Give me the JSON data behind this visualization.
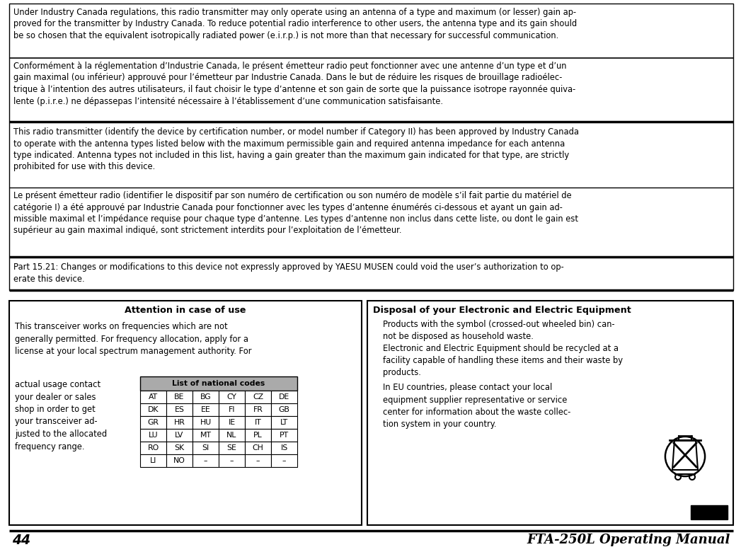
{
  "bg_color": "#ffffff",
  "page_num": "44",
  "block1_text": "Under Industry Canada regulations, this radio transmitter may only operate using an antenna of a type and maximum (or lesser) gain ap-\nproved for the transmitter by Industry Canada. To reduce potential radio interference to other users, the antenna type and its gain should\nbe so chosen that the equivalent isotropically radiated power (e.i.r.p.) is not more than that necessary for successful communication.",
  "block2_text": "Conformément à la réglementation d’Industrie Canada, le présent émetteur radio peut fonctionner avec une antenne d’un type et d’un\ngain maximal (ou inférieur) approuvé pour l’émetteur par Industrie Canada. Dans le but de réduire les risques de brouillage radioélec-\ntrique à l’intention des autres utilisateurs, il faut choisir le type d’antenne et son gain de sorte que la puissance isotrope rayonnée quiva-\nlente (p.i.r.e.) ne dépassepas l’intensité nécessaire à l’établissement d’une communication satisfaisante.",
  "block3_text": "This radio transmitter (identify the device by certification number, or model number if Category II) has been approved by Industry Canada\nto operate with the antenna types listed below with the maximum permissible gain and required antenna impedance for each antenna\ntype indicated. Antenna types not included in this list, having a gain greater than the maximum gain indicated for that type, are strictly\nprohibited for use with this device.",
  "block4_text": "Le présent émetteur radio (identifier le dispositif par son numéro de certification ou son numéro de modèle s’il fait partie du matériel de\ncatégorie I) a été approuvé par Industrie Canada pour fonctionner avec les types d’antenne énumérés ci-dessous et ayant un gain ad-\nmissible maximal et l’impédance requise pour chaque type d’antenne. Les types d’antenne non inclus dans cette liste, ou dont le gain est\nsupérieur au gain maximal indiqué, sont strictement interdits pour l’exploitation de l’émetteur.",
  "block5_text": "Part 15.21: Changes or modifications to this device not expressly approved by YAESU MUSEN could void the user’s authorization to op-\nerate this device.",
  "attn_title": "Attention in case of use",
  "attn_body1": "This transceiver works on frequencies which are not\ngenerally permitted. For frequency allocation, apply for a\nlicense at your local spectrum management authority. For",
  "attn_body2_lines": [
    "actual usage contact",
    "your dealer or sales",
    "shop in order to get",
    "your transceiver ad-",
    "justed to the allocated",
    "frequency range."
  ],
  "table_title": "List of national codes",
  "table_rows": [
    [
      "AT",
      "BE",
      "BG",
      "CY",
      "CZ",
      "DE"
    ],
    [
      "DK",
      "ES",
      "EE",
      "FI",
      "FR",
      "GB"
    ],
    [
      "GR",
      "HR",
      "HU",
      "IE",
      "IT",
      "LT"
    ],
    [
      "LU",
      "LV",
      "MT",
      "NL",
      "PL",
      "PT"
    ],
    [
      "RO",
      "SK",
      "SI",
      "SE",
      "CH",
      "IS"
    ],
    [
      "LI",
      "NO",
      "–",
      "–",
      "–",
      "–"
    ]
  ],
  "disposal_title": "Disposal of your Electronic and Electric Equipment",
  "disposal_para1": "Products with the symbol (crossed-out wheeled bin) can-\nnot be disposed as household waste.",
  "disposal_para2": "Electronic and Electric Equipment should be recycled at a\nfacility capable of handling these items and their waste by\nproducts.",
  "disposal_para3_left": "In EU countries, please contact your local\nequipment supplier representative or service\ncenter for information about the waste collec-\ntion system in your country.",
  "font_size_body": 8.3,
  "font_size_attn_title": 9.2,
  "font_size_footer": 13.5,
  "font_size_table": 7.8
}
